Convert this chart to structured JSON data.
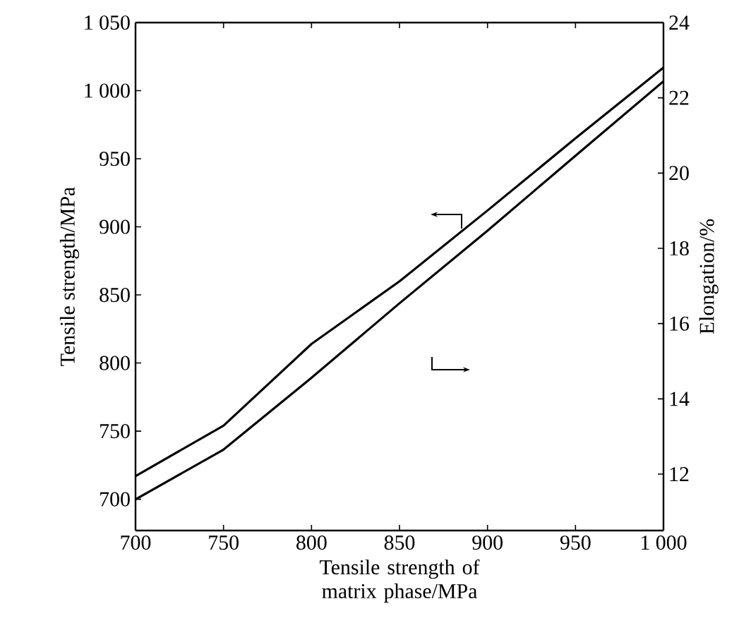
{
  "chart_data": {
    "type": "line",
    "xlabel": "Tensile strength of matrix phase/MPa",
    "ylabel": "Tensile strength/MPa",
    "y2label": "Elongation/%",
    "x": [
      700,
      750,
      800,
      850,
      900,
      950,
      1000
    ],
    "series": [
      {
        "color": "#000000",
        "values": [
          717,
          754,
          814,
          860,
          912,
          965,
          1017
        ]
      },
      {
        "color": "#000000",
        "axis": "y2",
        "values": [
          11.33,
          12.65,
          14.56,
          16.54,
          18.47,
          20.46,
          22.44
        ]
      }
    ],
    "xlim": [
      700,
      1000
    ],
    "xticks": [
      700,
      750,
      800,
      850,
      900,
      950,
      {
        "value": 1000,
        "label": "1 000"
      }
    ],
    "ylim": [
      677,
      1050
    ],
    "yticks": [
      700,
      750,
      800,
      850,
      900,
      950,
      {
        "value": 1000,
        "label": "1 000"
      },
      {
        "value": 1050,
        "label": "1 050"
      }
    ],
    "y2lim": [
      10.5,
      24
    ],
    "y2ticks": [
      12,
      14,
      16,
      18,
      20,
      22,
      24
    ],
    "grid": false,
    "legend": false,
    "marker": "none",
    "line_style": "solid"
  }
}
